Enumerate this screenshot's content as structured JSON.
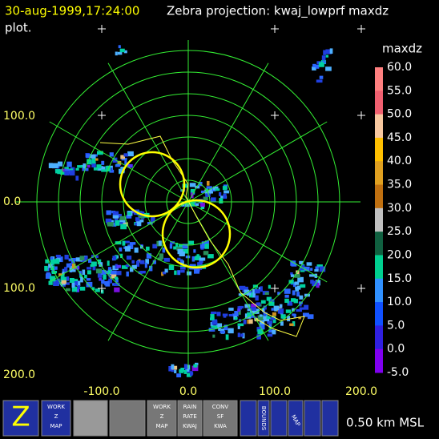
{
  "header": {
    "time": "30-aug-1999,17:24:00",
    "title": "Zebra projection: kwaj_lowprf maxdz",
    "title_cont": "plot."
  },
  "axes": {
    "y_labels": [
      "100.0",
      "0.0",
      "100.0",
      "200.0"
    ],
    "x_labels": [
      "-100.0",
      "0.0",
      "100.0",
      "200.0"
    ]
  },
  "colorbar": {
    "title": "maxdz",
    "labels": [
      "60.0",
      "55.0",
      "50.0",
      "45.0",
      "40.0",
      "35.0",
      "30.0",
      "25.0",
      "20.0",
      "15.0",
      "10.0",
      "5.0",
      "0.0",
      "-5.0"
    ]
  },
  "toolbar": {
    "work_map": [
      "WORK",
      "Z",
      "MAP"
    ],
    "work_map2": [
      "WORK",
      "Z",
      "MAP"
    ],
    "rain_rate": [
      "RAIN",
      "RATE",
      "KWAJ"
    ],
    "conv": [
      "CONV",
      "SF",
      "KWA"
    ],
    "bounds": "BOUNDS",
    "map": "MAP"
  },
  "status": "0.50 km MSL"
}
